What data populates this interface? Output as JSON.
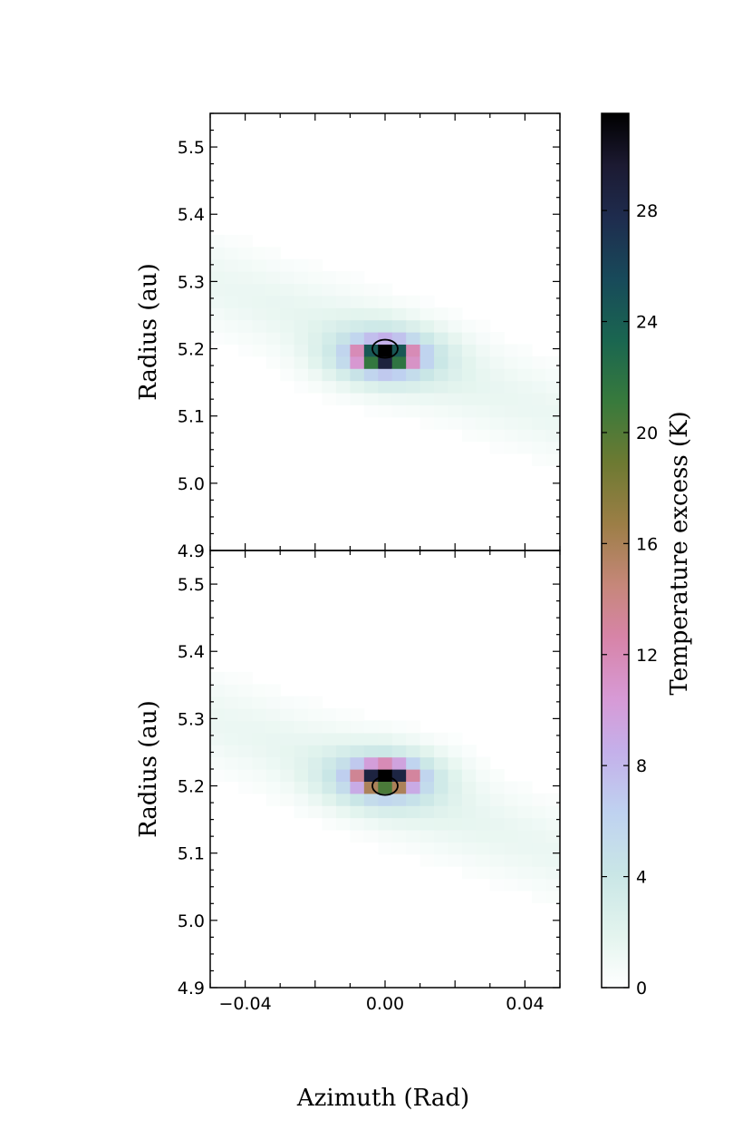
{
  "chart_data": {
    "type": "heatmap",
    "xlabel": "Azimuth (Rad)",
    "xlim": [
      -0.05,
      0.05
    ],
    "x_ticks": [
      "−0.04",
      "0.00",
      "0.04"
    ],
    "x_tick_values": [
      -0.04,
      0.0,
      0.04
    ],
    "colorbar": {
      "label": "Temperature excess (K)",
      "range": [
        0,
        31.5
      ],
      "ticks": [
        "0",
        "4",
        "8",
        "12",
        "16",
        "20",
        "24",
        "28"
      ],
      "tick_values": [
        0,
        4,
        8,
        12,
        16,
        20,
        24,
        28
      ],
      "colormap": "cubehelix_r"
    },
    "panels": [
      {
        "ylabel": "Radius (au)",
        "ylim": [
          4.9,
          5.55
        ],
        "y_ticks": [
          "4.9",
          "5.0",
          "5.1",
          "5.2",
          "5.3",
          "5.4",
          "5.5"
        ],
        "y_tick_values": [
          4.9,
          5.0,
          5.1,
          5.2,
          5.3,
          5.4,
          5.5
        ],
        "planet_ellipse": {
          "x": 0.0,
          "y": 5.2
        },
        "peak": {
          "x": 0.0,
          "y": 5.19,
          "value": 31
        }
      },
      {
        "ylabel": "Radius (au)",
        "ylim": [
          4.9,
          5.55
        ],
        "y_ticks": [
          "4.9",
          "5.0",
          "5.1",
          "5.2",
          "5.3",
          "5.4",
          "5.5"
        ],
        "y_tick_values": [
          4.9,
          5.0,
          5.1,
          5.2,
          5.3,
          5.4,
          5.5
        ],
        "planet_ellipse": {
          "x": 0.0,
          "y": 5.2
        },
        "peak": {
          "x": 0.0,
          "y": 5.213,
          "value": 31
        }
      }
    ]
  }
}
